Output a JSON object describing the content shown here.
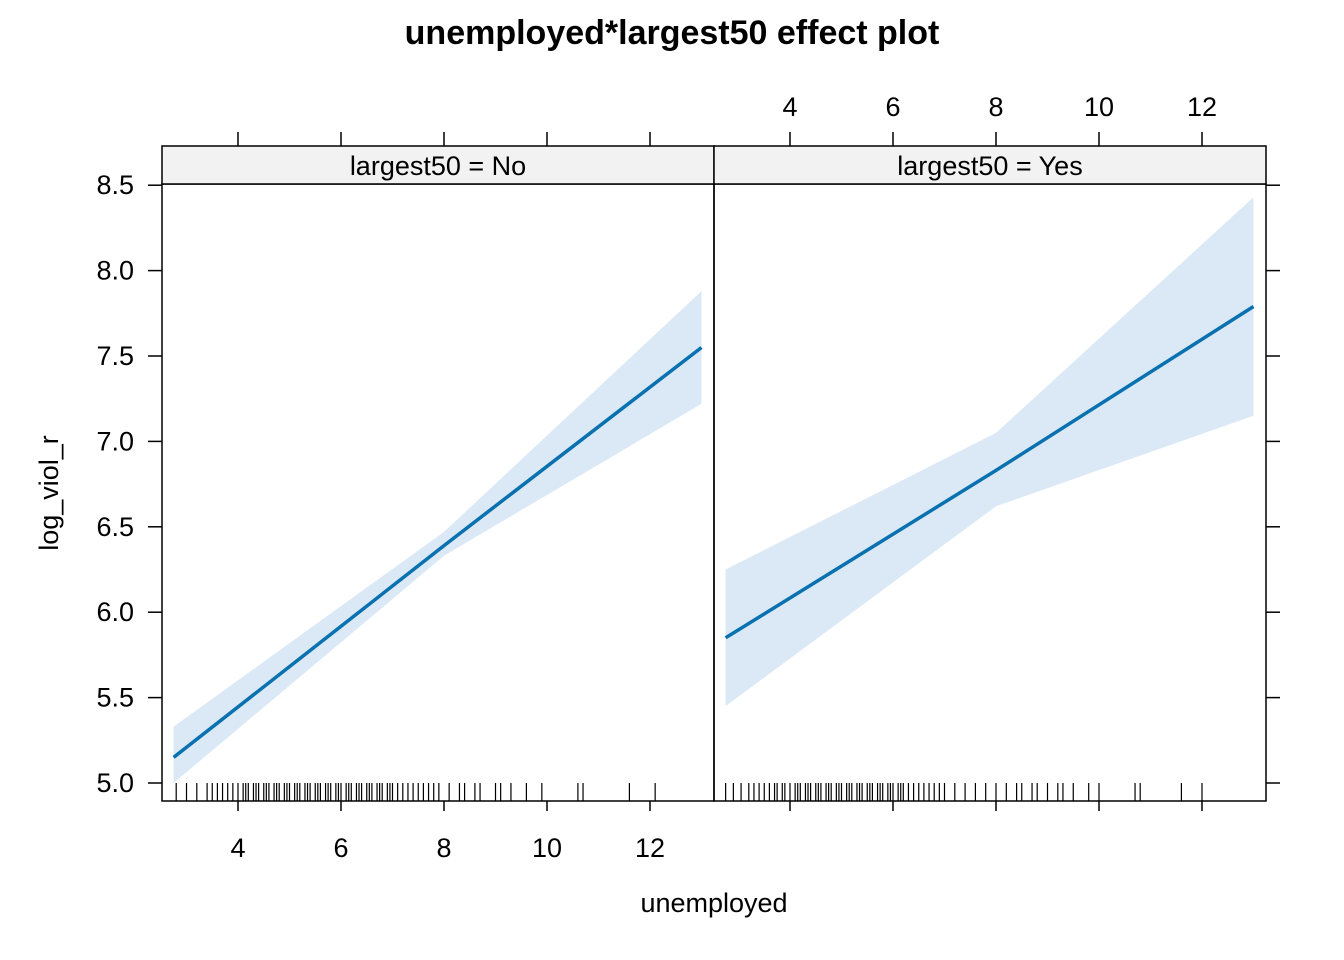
{
  "chart_data": {
    "type": "line",
    "title": "unemployed*largest50 effect plot",
    "xlabel": "unemployed",
    "ylabel": "log_viol_r",
    "xlim": [
      2.5,
      13.0
    ],
    "ylim": [
      4.9,
      8.75
    ],
    "xticks": [
      4,
      6,
      8,
      10,
      12
    ],
    "yticks": [
      5.0,
      5.5,
      6.0,
      6.5,
      7.0,
      7.5,
      8.0,
      8.5
    ],
    "ytick_labels": [
      "5.0",
      "5.5",
      "6.0",
      "6.5",
      "7.0",
      "7.5",
      "8.0",
      "8.5"
    ],
    "colors": {
      "fit": "#0a71b0",
      "band": "#dbe9f6",
      "strip": "#f2f2f2"
    },
    "panels": [
      {
        "strip": "largest50 = No",
        "x": [
          2.75,
          8.0,
          13.0
        ],
        "fit": [
          5.15,
          6.39,
          7.55
        ],
        "lower": [
          5.0,
          6.33,
          7.22
        ],
        "upper": [
          5.33,
          6.47,
          7.88
        ],
        "rug": [
          2.8,
          3.0,
          3.2,
          3.4,
          3.5,
          3.6,
          3.7,
          3.8,
          3.9,
          4.0,
          4.1,
          4.15,
          4.2,
          4.3,
          4.35,
          4.4,
          4.5,
          4.55,
          4.6,
          4.7,
          4.75,
          4.8,
          4.9,
          4.95,
          5.0,
          5.1,
          5.15,
          5.2,
          5.3,
          5.35,
          5.4,
          5.5,
          5.55,
          5.6,
          5.7,
          5.75,
          5.8,
          5.9,
          5.95,
          6.0,
          6.1,
          6.15,
          6.2,
          6.3,
          6.35,
          6.4,
          6.5,
          6.55,
          6.6,
          6.7,
          6.75,
          6.8,
          6.9,
          6.95,
          7.0,
          7.1,
          7.2,
          7.3,
          7.4,
          7.5,
          7.6,
          7.7,
          7.8,
          7.9,
          8.1,
          8.3,
          8.4,
          8.6,
          8.7,
          9.0,
          9.1,
          9.3,
          9.6,
          9.9,
          10.6,
          10.7,
          11.6,
          12.1
        ]
      },
      {
        "strip": "largest50 = Yes",
        "x": [
          2.75,
          8.0,
          13.0
        ],
        "fit": [
          5.85,
          6.83,
          7.79
        ],
        "lower": [
          5.45,
          6.62,
          7.15
        ],
        "upper": [
          6.25,
          7.05,
          8.43
        ],
        "rug": [
          2.75,
          2.9,
          3.05,
          3.2,
          3.3,
          3.4,
          3.5,
          3.6,
          3.7,
          3.75,
          3.85,
          3.9,
          4.0,
          4.1,
          4.15,
          4.2,
          4.3,
          4.35,
          4.4,
          4.5,
          4.55,
          4.6,
          4.7,
          4.75,
          4.8,
          4.9,
          4.95,
          5.0,
          5.1,
          5.15,
          5.2,
          5.3,
          5.35,
          5.4,
          5.5,
          5.55,
          5.6,
          5.7,
          5.75,
          5.8,
          5.9,
          5.95,
          6.0,
          6.1,
          6.15,
          6.2,
          6.3,
          6.4,
          6.5,
          6.6,
          6.7,
          6.8,
          6.9,
          7.0,
          7.2,
          7.4,
          7.6,
          7.8,
          8.0,
          8.2,
          8.4,
          8.5,
          8.7,
          8.8,
          9.0,
          9.2,
          9.3,
          9.5,
          9.8,
          10.0,
          10.7,
          10.8,
          11.6,
          12.0
        ]
      }
    ]
  }
}
